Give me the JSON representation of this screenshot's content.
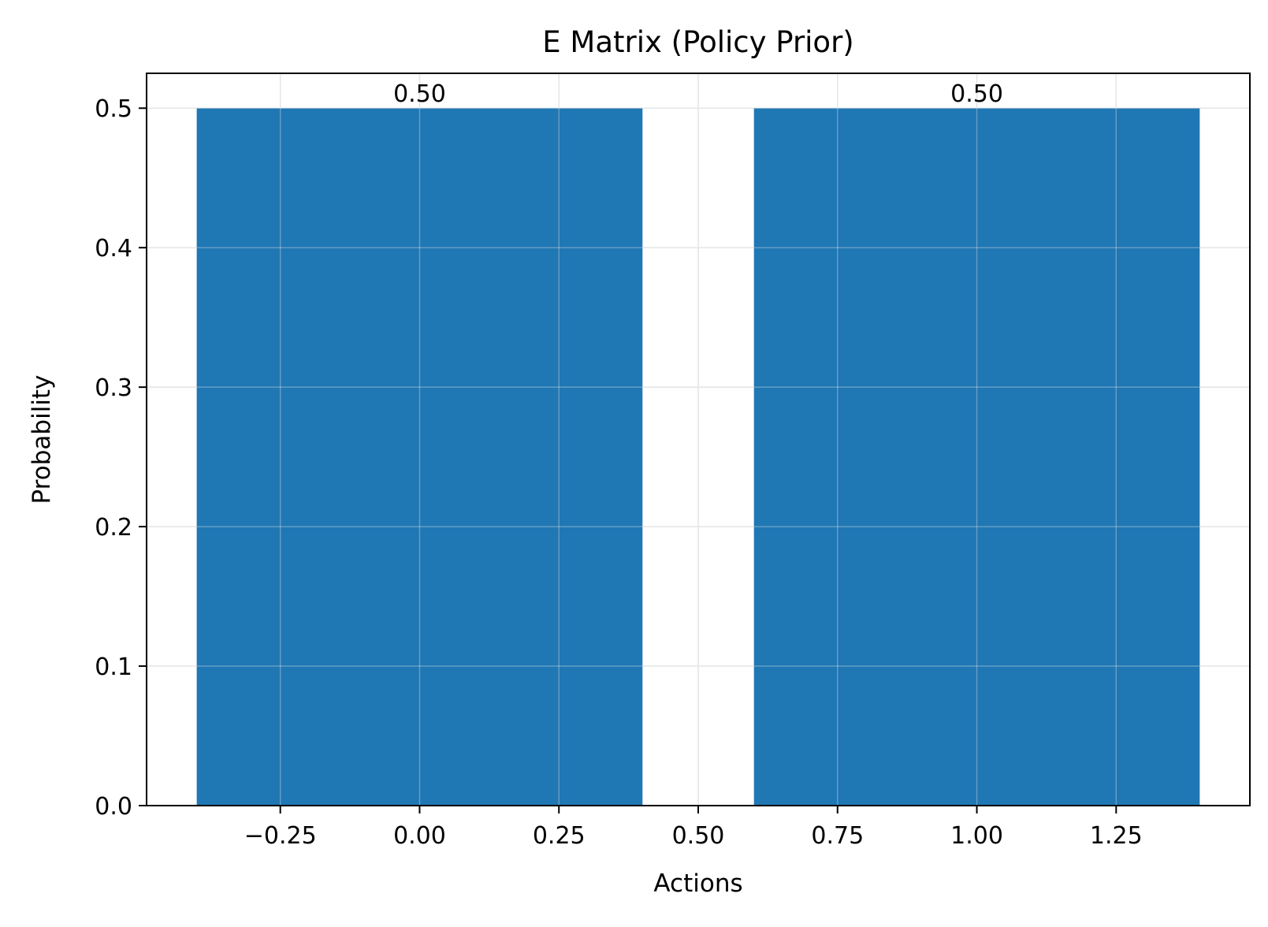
{
  "chart_data": {
    "type": "bar",
    "title": "E Matrix (Policy Prior)",
    "xlabel": "Actions",
    "ylabel": "Probability",
    "x": [
      0,
      1
    ],
    "values": [
      0.5,
      0.5
    ],
    "bar_width": 0.8,
    "bar_labels": [
      "0.50",
      "0.50"
    ],
    "bar_color": "#1f77b4",
    "xlim": [
      -0.49,
      1.49
    ],
    "ylim": [
      0,
      0.525
    ],
    "xticks": [
      -0.25,
      0.0,
      0.25,
      0.5,
      0.75,
      1.0,
      1.25
    ],
    "xtick_labels": [
      "−0.25",
      "0.00",
      "0.25",
      "0.50",
      "0.75",
      "1.00",
      "1.25"
    ],
    "yticks": [
      0.0,
      0.1,
      0.2,
      0.3,
      0.4,
      0.5
    ],
    "ytick_labels": [
      "0.0",
      "0.1",
      "0.2",
      "0.3",
      "0.4",
      "0.5"
    ],
    "grid": true
  }
}
